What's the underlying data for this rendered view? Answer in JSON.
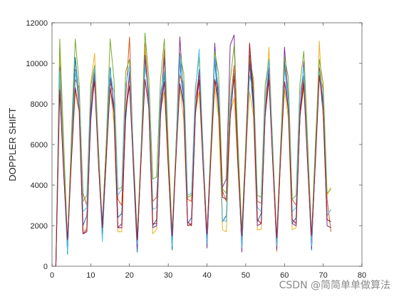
{
  "chart_data": {
    "type": "line",
    "title": "",
    "xlabel": "",
    "ylabel": "DOPPLER SHIFT",
    "xlim": [
      0,
      80
    ],
    "ylim": [
      0,
      12000
    ],
    "xticks": [
      0,
      10,
      20,
      30,
      40,
      50,
      60,
      70,
      80
    ],
    "yticks": [
      0,
      2000,
      4000,
      6000,
      8000,
      10000,
      12000
    ],
    "grid": false,
    "legend": "none",
    "colors": [
      "#0072BD",
      "#D95319",
      "#EDB120",
      "#7E2F8E",
      "#77AC30",
      "#4DBEEE",
      "#A2142F"
    ],
    "series": [
      {
        "x": [
          1,
          2,
          3,
          4,
          5,
          6,
          7,
          8,
          9,
          10,
          11,
          12,
          13,
          14,
          15,
          16,
          17,
          18,
          19,
          20,
          21,
          22,
          23,
          24,
          25,
          26,
          27,
          28,
          29,
          30,
          31,
          32,
          33,
          34,
          35,
          36,
          37,
          38,
          39,
          40,
          41,
          42,
          43,
          44,
          45,
          46,
          47,
          48,
          49,
          50,
          51,
          52,
          53,
          54,
          55,
          56,
          57,
          58,
          59,
          60,
          61,
          62,
          63,
          64,
          65,
          66,
          67,
          68,
          69,
          70,
          71,
          72
        ],
        "y": [
          0,
          10200,
          4800,
          600,
          6000,
          10300,
          8200,
          2000,
          2500,
          7200,
          9400,
          5200,
          2100,
          6000,
          9800,
          7500,
          2400,
          2600,
          7200,
          9600,
          4800,
          700,
          5800,
          10400,
          7800,
          2000,
          2300,
          7400,
          9500,
          5000,
          800,
          5800,
          10100,
          7800,
          2100,
          2400,
          7400,
          9700,
          5400,
          1000,
          5600,
          10200,
          7600,
          2200,
          2500,
          7400,
          9500,
          5200,
          900,
          5900,
          10000,
          7700,
          2200,
          2600,
          7400,
          9600,
          5300,
          900,
          5700,
          10100,
          7600,
          2100,
          2400,
          7300,
          9400,
          5100,
          800,
          5600,
          9700,
          7400,
          2300,
          2200
        ]
      },
      {
        "x": [
          1,
          2,
          3,
          4,
          5,
          6,
          7,
          8,
          9,
          10,
          11,
          12,
          13,
          14,
          15,
          16,
          17,
          18,
          19,
          20,
          21,
          22,
          23,
          24,
          25,
          26,
          27,
          28,
          29,
          30,
          31,
          32,
          33,
          34,
          35,
          36,
          37,
          38,
          39,
          40,
          41,
          42,
          43,
          44,
          45,
          46,
          47,
          48,
          49,
          50,
          51,
          52,
          53,
          54,
          55,
          56,
          57,
          58,
          59,
          60,
          61,
          62,
          63,
          64,
          65,
          66,
          67,
          68,
          69,
          70,
          71,
          72
        ],
        "y": [
          0,
          9300,
          5200,
          1200,
          5600,
          9200,
          8800,
          3600,
          3000,
          8000,
          9800,
          5600,
          1500,
          5200,
          9000,
          8600,
          3300,
          3000,
          8200,
          11300,
          5200,
          1000,
          5400,
          11000,
          8400,
          3200,
          3400,
          7700,
          10700,
          5300,
          1200,
          5700,
          9400,
          8900,
          3300,
          3200,
          8200,
          9500,
          5000,
          1200,
          5400,
          9200,
          8600,
          3700,
          3200,
          8000,
          9900,
          5300,
          1100,
          5500,
          10900,
          8700,
          3200,
          3100,
          7800,
          9300,
          5100,
          900,
          5400,
          9700,
          8400,
          3300,
          3000,
          7800,
          9200,
          5100,
          900,
          5500,
          9600,
          8700,
          3300,
          1700
        ]
      },
      {
        "x": [
          1,
          2,
          3,
          4,
          5,
          6,
          7,
          8,
          9,
          10,
          11,
          12,
          13,
          14,
          15,
          16,
          17,
          18,
          19,
          20,
          21,
          22,
          23,
          24,
          25,
          26,
          27,
          28,
          29,
          30,
          31,
          32,
          33,
          34,
          35,
          36,
          37,
          38,
          39,
          40,
          41,
          42,
          43,
          44,
          45,
          46,
          47,
          48,
          49,
          50,
          51,
          52,
          53,
          54,
          55,
          56,
          57,
          58,
          59,
          60,
          61,
          62,
          63,
          64,
          65,
          66,
          67,
          68,
          69,
          70,
          71,
          72
        ],
        "y": [
          0,
          10600,
          5400,
          1300,
          5200,
          8600,
          7600,
          1700,
          1900,
          9000,
          10500,
          5800,
          1700,
          5600,
          8800,
          7000,
          1700,
          1700,
          7800,
          9200,
          5000,
          1200,
          5400,
          10800,
          7800,
          1600,
          1800,
          7700,
          8600,
          4800,
          1400,
          5500,
          8800,
          7200,
          2000,
          2000,
          7600,
          8600,
          4900,
          1300,
          5200,
          8800,
          7300,
          1800,
          1700,
          7500,
          8300,
          4800,
          1200,
          5500,
          8600,
          7400,
          1800,
          1800,
          7700,
          10800,
          5600,
          700,
          5300,
          8700,
          7300,
          1800,
          1900,
          7400,
          8800,
          5000,
          1300,
          5300,
          11100,
          7300,
          3500,
          3900
        ]
      },
      {
        "x": [
          1,
          2,
          3,
          4,
          5,
          6,
          7,
          8,
          9,
          10,
          11,
          12,
          13,
          14,
          15,
          16,
          17,
          18,
          19,
          20,
          21,
          22,
          23,
          24,
          25,
          26,
          27,
          28,
          29,
          30,
          31,
          32,
          33,
          34,
          35,
          36,
          37,
          38,
          39,
          40,
          41,
          42,
          43,
          44,
          45,
          46,
          47,
          48,
          49,
          50,
          51,
          52,
          53,
          54,
          55,
          56,
          57,
          58,
          59,
          60,
          61,
          62,
          63,
          64,
          65,
          66,
          67,
          68,
          69,
          70,
          71,
          72
        ],
        "y": [
          0,
          9800,
          5000,
          1000,
          5700,
          9700,
          8000,
          1600,
          1800,
          7400,
          9600,
          5100,
          1400,
          5400,
          9300,
          7900,
          1900,
          2100,
          7500,
          9500,
          5200,
          900,
          5600,
          10400,
          8100,
          1900,
          2000,
          7800,
          10300,
          5200,
          1100,
          5800,
          11300,
          8300,
          2000,
          2100,
          7600,
          9600,
          5300,
          900,
          5500,
          11000,
          8100,
          3900,
          4300,
          10900,
          11400,
          5700,
          700,
          5600,
          10400,
          8000,
          2000,
          2100,
          7500,
          9800,
          5400,
          800,
          5500,
          10800,
          8300,
          2100,
          2000,
          7500,
          10100,
          5400,
          900,
          5500,
          9800,
          8000,
          2000,
          1900
        ]
      },
      {
        "x": [
          1,
          2,
          3,
          4,
          5,
          6,
          7,
          8,
          9,
          10,
          11,
          12,
          13,
          14,
          15,
          16,
          17,
          18,
          19,
          20,
          21,
          22,
          23,
          24,
          25,
          26,
          27,
          28,
          29,
          30,
          31,
          32,
          33,
          34,
          35,
          36,
          37,
          38,
          39,
          40,
          41,
          42,
          43,
          44,
          45,
          46,
          47,
          48,
          49,
          50,
          51,
          52,
          53,
          54,
          55,
          56,
          57,
          58,
          59,
          60,
          61,
          62,
          63,
          64,
          65,
          66,
          67,
          68,
          69,
          70,
          71,
          72
        ],
        "y": [
          0,
          11200,
          6200,
          1100,
          6400,
          11200,
          9000,
          3200,
          3500,
          8900,
          9900,
          5800,
          1800,
          6100,
          11200,
          9200,
          3800,
          3900,
          9600,
          10200,
          5700,
          1400,
          5900,
          11500,
          9300,
          4300,
          4400,
          9200,
          11200,
          6000,
          1600,
          6000,
          10500,
          9500,
          3400,
          3500,
          8800,
          10300,
          5800,
          1500,
          6000,
          10600,
          9500,
          3800,
          3600,
          9100,
          10900,
          6100,
          1700,
          6100,
          10300,
          9200,
          3500,
          3400,
          8900,
          10200,
          5900,
          1300,
          6000,
          10300,
          9300,
          3300,
          3500,
          9000,
          10600,
          6100,
          1400,
          6200,
          10200,
          9000,
          3600,
          3800
        ]
      },
      {
        "x": [
          1,
          2,
          3,
          4,
          5,
          6,
          7,
          8,
          9,
          10,
          11,
          12,
          13,
          14,
          15,
          16,
          17,
          18,
          19,
          20,
          21,
          22,
          23,
          24,
          25,
          26,
          27,
          28,
          29,
          30,
          31,
          32,
          33,
          34,
          35,
          36,
          37,
          38,
          39,
          40,
          41,
          42,
          43,
          44,
          45,
          46,
          47,
          48,
          49,
          50,
          51,
          52,
          53,
          54,
          55,
          56,
          57,
          58,
          59,
          60,
          61,
          62,
          63,
          64,
          65,
          66,
          67,
          68,
          69,
          70,
          71,
          72
        ],
        "y": [
          0,
          9600,
          4900,
          700,
          5500,
          9600,
          8300,
          2700,
          2900,
          8400,
          9800,
          5300,
          1200,
          5500,
          9600,
          8500,
          3500,
          3800,
          8900,
          9900,
          5400,
          1100,
          5500,
          9800,
          8600,
          2800,
          2900,
          8500,
          9600,
          5200,
          1000,
          5500,
          10400,
          8800,
          3500,
          3600,
          8600,
          10700,
          5600,
          1100,
          5600,
          10300,
          8700,
          2300,
          2200,
          8000,
          9400,
          5100,
          900,
          5400,
          9400,
          8600,
          2900,
          2700,
          8300,
          10200,
          5400,
          1000,
          5500,
          9600,
          8500,
          2700,
          2900,
          8400,
          9800,
          5300,
          1000,
          5400,
          9600,
          8300,
          2500,
          2800
        ]
      },
      {
        "x": [
          1,
          2,
          3,
          4,
          5,
          6,
          7,
          8,
          9,
          10,
          11,
          12,
          13,
          14,
          15,
          16,
          17,
          18,
          19,
          20,
          21,
          22,
          23,
          24,
          25,
          26,
          27,
          28,
          29,
          30,
          31,
          32,
          33,
          34,
          35,
          36,
          37,
          38,
          39,
          40,
          41,
          42,
          43,
          44,
          45,
          46,
          47,
          48,
          49,
          50,
          51,
          52,
          53,
          54,
          55,
          56,
          57,
          58,
          59,
          60,
          61,
          62,
          63,
          64,
          65,
          66,
          67,
          68,
          69,
          70,
          71,
          72
        ],
        "y": [
          0,
          8700,
          4600,
          1300,
          5200,
          8800,
          7700,
          1600,
          1700,
          7700,
          9100,
          5000,
          1900,
          5400,
          8800,
          7600,
          1900,
          1900,
          7600,
          8900,
          5000,
          1300,
          5300,
          9200,
          7800,
          2100,
          2100,
          7600,
          9100,
          5000,
          1500,
          5300,
          9000,
          7900,
          2200,
          2000,
          7500,
          9200,
          4900,
          1600,
          5400,
          9200,
          7900,
          3400,
          3300,
          7300,
          9400,
          5000,
          1500,
          5300,
          11000,
          8200,
          2300,
          2100,
          7400,
          9200,
          5000,
          1400,
          5300,
          9100,
          7700,
          2300,
          2100,
          7400,
          9000,
          4900,
          1500,
          5200,
          9400,
          7800,
          2300,
          2200
        ]
      }
    ]
  },
  "watermark": {
    "text": "CSDN @简简单单做算法"
  }
}
